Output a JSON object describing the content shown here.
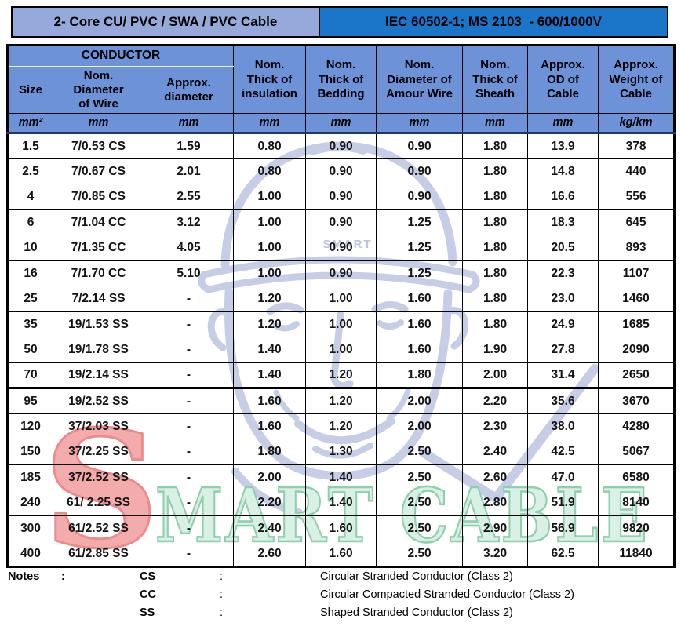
{
  "title_bar": {
    "left": "2- Core CU/ PVC / SWA / PVC Cable",
    "right": "IEC 60502-1; MS 2103  - 600/1000V"
  },
  "colors": {
    "title_left_bg": "#95aadb",
    "title_right_bg": "#1b75c8",
    "header_bg": "#6e92d8",
    "header_rule_navy": "#1f3864",
    "watermark_blue": "#c5cee6",
    "watermark_red_fill": "#f3abab",
    "watermark_red_stroke": "#ea8c8c",
    "watermark_green_fill": "#d9f0e4",
    "watermark_green_stroke": "#8ecfae"
  },
  "table": {
    "group_header": "CONDUCTOR",
    "columns": [
      {
        "label": "Size",
        "unit": "mm²"
      },
      {
        "label": "Nom.\nDiameter\nof Wire",
        "unit": "mm"
      },
      {
        "label": "Approx.\ndiameter",
        "unit": "mm"
      },
      {
        "label": "Nom.\nThick of\ninsulation",
        "unit": "mm"
      },
      {
        "label": "Nom.\nThick of\nBedding",
        "unit": "mm"
      },
      {
        "label": "Nom.\nDiameter of\nAmour Wire",
        "unit": "mm"
      },
      {
        "label": "Nom.\nThick of\nSheath",
        "unit": "mm"
      },
      {
        "label": "Approx.\nOD of\nCable",
        "unit": "mm"
      },
      {
        "label": "Approx.\nWeight of\nCable",
        "unit": "kg/km"
      }
    ],
    "rows": [
      [
        "1.5",
        "7/0.53 CS",
        "1.59",
        "0.80",
        "0.90",
        "0.90",
        "1.80",
        "13.9",
        "378"
      ],
      [
        "2.5",
        "7/0.67 CS",
        "2.01",
        "0.80",
        "0.90",
        "0.90",
        "1.80",
        "14.8",
        "440"
      ],
      [
        "4",
        "7/0.85 CS",
        "2.55",
        "1.00",
        "0.90",
        "0.90",
        "1.80",
        "16.6",
        "556"
      ],
      [
        "6",
        "7/1.04 CC",
        "3.12",
        "1.00",
        "0.90",
        "1.25",
        "1.80",
        "18.3",
        "645"
      ],
      [
        "10",
        "7/1.35 CC",
        "4.05",
        "1.00",
        "0.90",
        "1.25",
        "1.80",
        "20.5",
        "893"
      ],
      [
        "16",
        "7/1.70 CC",
        "5.10",
        "1.00",
        "0.90",
        "1.25",
        "1.80",
        "22.3",
        "1107"
      ],
      [
        "25",
        "7/2.14 SS",
        "-",
        "1.20",
        "1.00",
        "1.60",
        "1.80",
        "23.0",
        "1460"
      ],
      [
        "35",
        "19/1.53 SS",
        "-",
        "1.20",
        "1.00",
        "1.60",
        "1.80",
        "24.9",
        "1685"
      ],
      [
        "50",
        "19/1.78 SS",
        "-",
        "1.40",
        "1.00",
        "1.60",
        "1.90",
        "27.8",
        "2090"
      ],
      [
        "70",
        "19/2.14 SS",
        "-",
        "1.40",
        "1.20",
        "1.80",
        "2.00",
        "31.4",
        "2650"
      ],
      [
        "95",
        "19/2.52 SS",
        "-",
        "1.60",
        "1.20",
        "2.00",
        "2.20",
        "35.6",
        "3670"
      ],
      [
        "120",
        "37/2.03 SS",
        "-",
        "1.60",
        "1.20",
        "2.00",
        "2.30",
        "38.0",
        "4280"
      ],
      [
        "150",
        "37/2.25 SS",
        "-",
        "1.80",
        "1.30",
        "2.50",
        "2.40",
        "42.5",
        "5067"
      ],
      [
        "185",
        "37/2.52 SS",
        "-",
        "2.00",
        "1.40",
        "2.50",
        "2.60",
        "47.0",
        "6580"
      ],
      [
        "240",
        "61/ 2.25 SS",
        "-",
        "2.20",
        "1.40",
        "2.50",
        "2.80",
        "51.9",
        "8140"
      ],
      [
        "300",
        "61/2.52 SS",
        "-",
        "2.40",
        "1.60",
        "2.50",
        "2.90",
        "56.9",
        "9820"
      ],
      [
        "400",
        "61/2.85 SS",
        "-",
        "2.60",
        "1.60",
        "2.50",
        "3.20",
        "62.5",
        "11840"
      ]
    ]
  },
  "notes": {
    "label": "Notes",
    "label_colon": ":",
    "items": [
      {
        "abbr": "CS",
        "colon": ":",
        "desc": "Circular Stranded Conductor (Class 2)"
      },
      {
        "abbr": "CC",
        "colon": ":",
        "desc": "Circular Compacted Stranded Conductor (Class 2)"
      },
      {
        "abbr": "SS",
        "colon": ":",
        "desc": "Shaped Stranded Conductor (Class 2)"
      }
    ]
  },
  "watermark": {
    "helmet_text": "SMART",
    "logo_s": "S",
    "logo_rest": "MART CABLE"
  }
}
